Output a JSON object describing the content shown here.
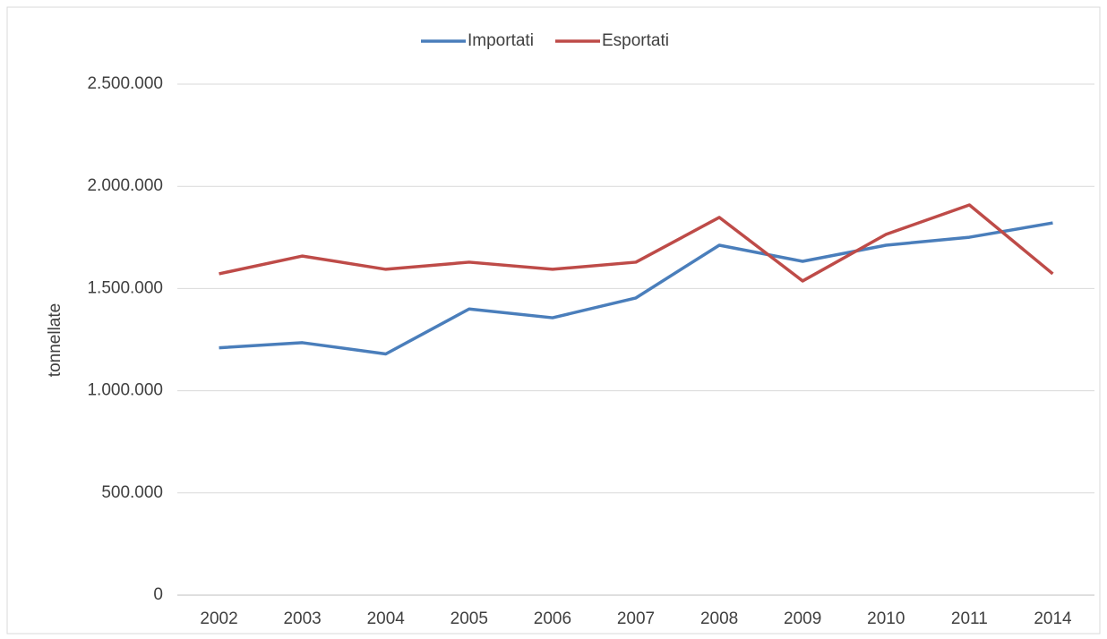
{
  "chart_data": {
    "type": "line",
    "y_label": "tonnellate",
    "categories": [
      "2002",
      "2003",
      "2004",
      "2005",
      "2006",
      "2007",
      "2008",
      "2009",
      "2010",
      "2011",
      "2014"
    ],
    "series": [
      {
        "name": "Importati",
        "color": "#4a7ebb",
        "values": [
          1210000,
          1235000,
          1180000,
          1400000,
          1357000,
          1454000,
          1712000,
          1633000,
          1712000,
          1751000,
          1821000
        ]
      },
      {
        "name": "Esportati",
        "color": "#be4b48",
        "values": [
          1572000,
          1659000,
          1594000,
          1629000,
          1594000,
          1629000,
          1848000,
          1537000,
          1765000,
          1909000,
          1572000
        ]
      }
    ],
    "ylim": [
      0,
      2500000
    ],
    "yticks": [
      0,
      {
        "value": 500000,
        "label": "500.000"
      },
      {
        "value": 1000000,
        "label": "1.000.000"
      },
      {
        "value": 1500000,
        "label": "1.500.000"
      },
      {
        "value": 2000000,
        "label": "2.000.000"
      },
      {
        "value": 2500000,
        "label": "2.500.000"
      }
    ],
    "grid": true,
    "legend": "top"
  }
}
